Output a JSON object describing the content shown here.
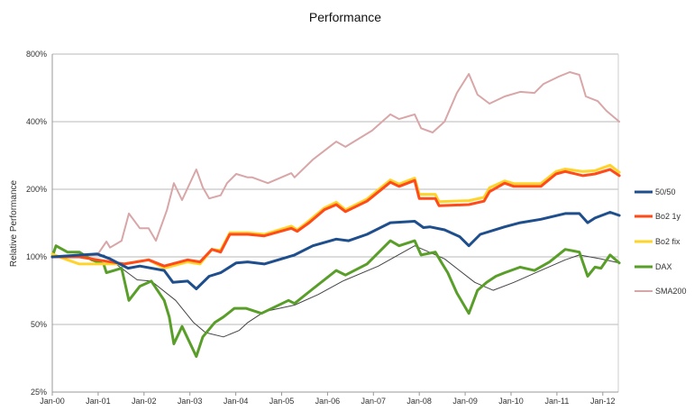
{
  "chart_data": {
    "type": "line",
    "title": "Performance",
    "xlabel": "",
    "ylabel": "Relative Performance",
    "yscale": "log2",
    "ylim": [
      25,
      800
    ],
    "xlim": [
      2000,
      2012.36
    ],
    "yticks": [
      25,
      50,
      100,
      200,
      400,
      800
    ],
    "ytick_labels": [
      "25%",
      "50%",
      "100%",
      "200%",
      "400%",
      "800%"
    ],
    "xticks": [
      2000,
      2001,
      2002,
      2003,
      2004,
      2005,
      2006,
      2007,
      2008,
      2009,
      2010,
      2011,
      2012
    ],
    "xtick_labels": [
      "Jan-00",
      "Jan-01",
      "Jan-02",
      "Jan-03",
      "Jan-04",
      "Jan-05",
      "Jan-06",
      "Jan-07",
      "Jan-08",
      "Jan-09",
      "Jan-10",
      "Jan-11",
      "Jan-12"
    ],
    "grid": "horizontal",
    "legend_position": "right",
    "series": [
      {
        "name": "SMA200",
        "color": "#d9a6a8",
        "width": 2,
        "legend": true,
        "points": [
          [
            2000,
            100
          ],
          [
            2000.98,
            102
          ],
          [
            2001.18,
            117
          ],
          [
            2001.26,
            110
          ],
          [
            2001.51,
            118
          ],
          [
            2001.67,
            156
          ],
          [
            2001.91,
            134
          ],
          [
            2002.1,
            134
          ],
          [
            2002.26,
            118
          ],
          [
            2002.5,
            162
          ],
          [
            2002.65,
            213
          ],
          [
            2002.83,
            179
          ],
          [
            2003.14,
            245
          ],
          [
            2003.28,
            204
          ],
          [
            2003.42,
            182
          ],
          [
            2003.67,
            188
          ],
          [
            2003.81,
            213
          ],
          [
            2004.01,
            234
          ],
          [
            2004.26,
            226
          ],
          [
            2004.36,
            226
          ],
          [
            2004.7,
            213
          ],
          [
            2005.21,
            236
          ],
          [
            2005.28,
            226
          ],
          [
            2005.68,
            271
          ],
          [
            2006.19,
            326
          ],
          [
            2006.39,
            309
          ],
          [
            2006.97,
            365
          ],
          [
            2007.37,
            431
          ],
          [
            2007.56,
            411
          ],
          [
            2007.9,
            431
          ],
          [
            2008.04,
            374
          ],
          [
            2008.29,
            358
          ],
          [
            2008.55,
            400
          ],
          [
            2008.82,
            537
          ],
          [
            2009.08,
            653
          ],
          [
            2009.27,
            528
          ],
          [
            2009.53,
            481
          ],
          [
            2009.86,
            518
          ],
          [
            2010.2,
            543
          ],
          [
            2010.51,
            537
          ],
          [
            2010.71,
            589
          ],
          [
            2011.04,
            635
          ],
          [
            2011.28,
            665
          ],
          [
            2011.49,
            647
          ],
          [
            2011.63,
            518
          ],
          [
            2011.89,
            494
          ],
          [
            2012.08,
            447
          ],
          [
            2012.36,
            400
          ]
        ]
      },
      {
        "name": "",
        "color": "#444444",
        "width": 1,
        "legend": false,
        "points": [
          [
            2001.12,
            102
          ],
          [
            2001.85,
            79
          ],
          [
            2002.16,
            78
          ],
          [
            2002.69,
            64
          ],
          [
            2003.08,
            51
          ],
          [
            2003.34,
            46
          ],
          [
            2003.73,
            44
          ],
          [
            2004.07,
            47
          ],
          [
            2004.26,
            51
          ],
          [
            2004.62,
            57
          ],
          [
            2005.28,
            61
          ],
          [
            2005.8,
            68
          ],
          [
            2006.33,
            78
          ],
          [
            2007.11,
            91
          ],
          [
            2007.9,
            112
          ],
          [
            2008.55,
            98
          ],
          [
            2009.21,
            77
          ],
          [
            2009.61,
            71
          ],
          [
            2010.06,
            77
          ],
          [
            2010.65,
            87
          ],
          [
            2011.18,
            97
          ],
          [
            2011.49,
            102
          ],
          [
            2011.96,
            98
          ],
          [
            2012.36,
            94
          ]
        ]
      },
      {
        "name": "DAX",
        "color": "#5a9e2a",
        "width": 3,
        "legend": true,
        "points": [
          [
            2000,
            100
          ],
          [
            2000.08,
            112
          ],
          [
            2000.33,
            105
          ],
          [
            2000.59,
            105
          ],
          [
            2000.86,
            97
          ],
          [
            2001.12,
            93
          ],
          [
            2001.18,
            85
          ],
          [
            2001.51,
            89
          ],
          [
            2001.67,
            64
          ],
          [
            2001.91,
            74
          ],
          [
            2002.16,
            78
          ],
          [
            2002.44,
            64
          ],
          [
            2002.55,
            54
          ],
          [
            2002.65,
            41
          ],
          [
            2002.83,
            49
          ],
          [
            2003.14,
            36
          ],
          [
            2003.28,
            44
          ],
          [
            2003.54,
            51
          ],
          [
            2003.73,
            54
          ],
          [
            2003.97,
            59
          ],
          [
            2004.22,
            59
          ],
          [
            2004.56,
            56
          ],
          [
            2005.15,
            64
          ],
          [
            2005.28,
            62
          ],
          [
            2005.68,
            72
          ],
          [
            2006.19,
            87
          ],
          [
            2006.39,
            83
          ],
          [
            2006.86,
            93
          ],
          [
            2007.37,
            118
          ],
          [
            2007.56,
            112
          ],
          [
            2007.9,
            118
          ],
          [
            2008.04,
            102
          ],
          [
            2008.35,
            105
          ],
          [
            2008.49,
            94
          ],
          [
            2008.62,
            85
          ],
          [
            2008.82,
            69
          ],
          [
            2009.08,
            56
          ],
          [
            2009.27,
            71
          ],
          [
            2009.47,
            77
          ],
          [
            2009.67,
            82
          ],
          [
            2009.86,
            85
          ],
          [
            2010.2,
            90
          ],
          [
            2010.51,
            87
          ],
          [
            2010.84,
            95
          ],
          [
            2011.18,
            108
          ],
          [
            2011.49,
            105
          ],
          [
            2011.67,
            82
          ],
          [
            2011.83,
            90
          ],
          [
            2011.96,
            89
          ],
          [
            2012.16,
            102
          ],
          [
            2012.36,
            94
          ]
        ]
      },
      {
        "name": "Bo2 fix",
        "color": "#ffd42a",
        "width": 3,
        "legend": true,
        "points": [
          [
            2000,
            103
          ],
          [
            2000.33,
            97
          ],
          [
            2000.59,
            93
          ],
          [
            2000.98,
            93
          ],
          [
            2001.57,
            93
          ],
          [
            2002.1,
            97
          ],
          [
            2002.44,
            89
          ],
          [
            2002.95,
            95
          ],
          [
            2003.22,
            93
          ],
          [
            2003.48,
            108
          ],
          [
            2003.67,
            107
          ],
          [
            2003.87,
            128
          ],
          [
            2004.26,
            128
          ],
          [
            2004.62,
            126
          ],
          [
            2005.21,
            137
          ],
          [
            2005.34,
            132
          ],
          [
            2005.6,
            145
          ],
          [
            2005.93,
            165
          ],
          [
            2006.19,
            175
          ],
          [
            2006.39,
            162
          ],
          [
            2006.86,
            181
          ],
          [
            2007.37,
            220
          ],
          [
            2007.56,
            211
          ],
          [
            2007.9,
            224
          ],
          [
            2008.0,
            190
          ],
          [
            2008.35,
            190
          ],
          [
            2008.43,
            176
          ],
          [
            2009.08,
            178
          ],
          [
            2009.41,
            184
          ],
          [
            2009.53,
            203
          ],
          [
            2009.86,
            218
          ],
          [
            2010.06,
            212
          ],
          [
            2010.65,
            212
          ],
          [
            2010.98,
            240
          ],
          [
            2011.18,
            246
          ],
          [
            2011.57,
            240
          ],
          [
            2011.83,
            242
          ],
          [
            2012.16,
            256
          ],
          [
            2012.36,
            238
          ]
        ]
      },
      {
        "name": "Bo2 1y",
        "color": "#ff4a1a",
        "width": 3,
        "legend": true,
        "points": [
          [
            2000,
            100
          ],
          [
            2000.59,
            100
          ],
          [
            2000.98,
            97
          ],
          [
            2001.57,
            93
          ],
          [
            2002.1,
            97
          ],
          [
            2002.44,
            91
          ],
          [
            2002.95,
            97
          ],
          [
            2003.22,
            95
          ],
          [
            2003.48,
            108
          ],
          [
            2003.67,
            105
          ],
          [
            2003.87,
            126
          ],
          [
            2004.26,
            126
          ],
          [
            2004.62,
            124
          ],
          [
            2005.21,
            134
          ],
          [
            2005.34,
            130
          ],
          [
            2005.6,
            142
          ],
          [
            2005.93,
            162
          ],
          [
            2006.19,
            171
          ],
          [
            2006.39,
            159
          ],
          [
            2006.86,
            177
          ],
          [
            2007.37,
            215
          ],
          [
            2007.56,
            206
          ],
          [
            2007.9,
            219
          ],
          [
            2008.0,
            182
          ],
          [
            2008.35,
            182
          ],
          [
            2008.43,
            169
          ],
          [
            2009.08,
            171
          ],
          [
            2009.41,
            177
          ],
          [
            2009.53,
            195
          ],
          [
            2009.86,
            213
          ],
          [
            2010.06,
            206
          ],
          [
            2010.65,
            206
          ],
          [
            2010.98,
            234
          ],
          [
            2011.18,
            240
          ],
          [
            2011.57,
            230
          ],
          [
            2011.83,
            234
          ],
          [
            2012.16,
            245
          ],
          [
            2012.36,
            230
          ]
        ]
      },
      {
        "name": "50/50",
        "color": "#1f4e8c",
        "width": 3,
        "legend": true,
        "points": [
          [
            2000,
            100
          ],
          [
            2000.98,
            103
          ],
          [
            2001.26,
            98
          ],
          [
            2001.65,
            89
          ],
          [
            2001.91,
            91
          ],
          [
            2002.44,
            87
          ],
          [
            2002.63,
            77
          ],
          [
            2002.95,
            78
          ],
          [
            2003.14,
            72
          ],
          [
            2003.42,
            82
          ],
          [
            2003.67,
            85
          ],
          [
            2004.01,
            94
          ],
          [
            2004.26,
            95
          ],
          [
            2004.62,
            93
          ],
          [
            2005.28,
            102
          ],
          [
            2005.68,
            112
          ],
          [
            2006.19,
            120
          ],
          [
            2006.46,
            118
          ],
          [
            2006.86,
            126
          ],
          [
            2007.37,
            142
          ],
          [
            2007.9,
            144
          ],
          [
            2008.09,
            135
          ],
          [
            2008.23,
            136
          ],
          [
            2008.55,
            132
          ],
          [
            2008.88,
            123
          ],
          [
            2009.08,
            112
          ],
          [
            2009.33,
            126
          ],
          [
            2009.86,
            136
          ],
          [
            2010.2,
            142
          ],
          [
            2010.65,
            147
          ],
          [
            2011.18,
            156
          ],
          [
            2011.49,
            156
          ],
          [
            2011.67,
            142
          ],
          [
            2011.83,
            149
          ],
          [
            2012.16,
            158
          ],
          [
            2012.36,
            153
          ]
        ]
      }
    ],
    "legend_order": [
      "50/50",
      "Bo2 1y",
      "Bo2 fix",
      "DAX",
      "SMA200"
    ]
  }
}
